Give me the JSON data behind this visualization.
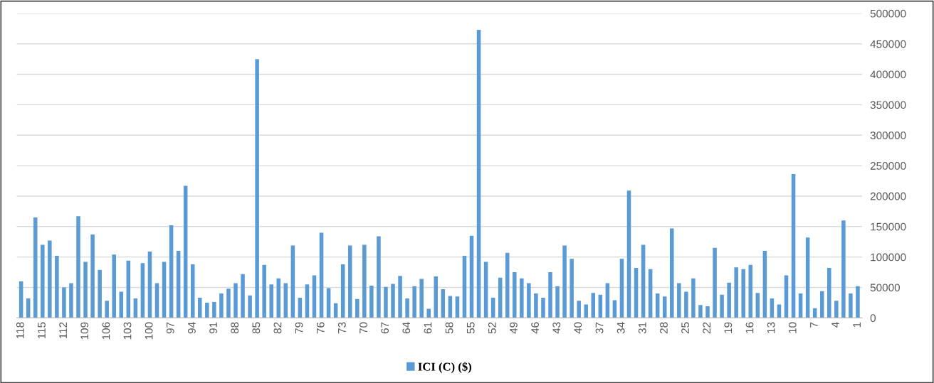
{
  "chart_data": {
    "type": "bar",
    "categories": [
      "118",
      null,
      null,
      "115",
      null,
      null,
      "112",
      null,
      null,
      "109",
      null,
      null,
      "106",
      null,
      null,
      "103",
      null,
      null,
      "100",
      null,
      null,
      "97",
      null,
      null,
      "94",
      null,
      null,
      "91",
      null,
      null,
      "88",
      null,
      null,
      "85",
      null,
      null,
      "82",
      null,
      null,
      "79",
      null,
      null,
      "76",
      null,
      null,
      "73",
      null,
      null,
      "70",
      null,
      null,
      "67",
      null,
      null,
      "64",
      null,
      null,
      "61",
      null,
      null,
      "58",
      null,
      null,
      "55",
      null,
      null,
      "52",
      null,
      null,
      "49",
      null,
      null,
      "46",
      null,
      null,
      "43",
      null,
      null,
      "40",
      null,
      null,
      "37",
      null,
      null,
      "34",
      null,
      null,
      "31",
      null,
      null,
      "28",
      null,
      null,
      "25",
      null,
      null,
      "22",
      null,
      null,
      "19",
      null,
      null,
      "16",
      null,
      null,
      "13",
      null,
      null,
      "10",
      null,
      null,
      "7",
      null,
      null,
      "4",
      null,
      null,
      "1"
    ],
    "series": [
      {
        "name": "ICI (C) ($)",
        "color": "#5b9bd5",
        "values": [
          60000,
          32000,
          165000,
          120000,
          127000,
          102000,
          50000,
          57000,
          167000,
          92000,
          137000,
          79000,
          28000,
          104000,
          43000,
          94000,
          32000,
          90000,
          109000,
          57000,
          92000,
          152000,
          110000,
          217000,
          88000,
          33000,
          25000,
          26000,
          40000,
          48000,
          57000,
          72000,
          37000,
          425000,
          87000,
          55000,
          65000,
          57000,
          119000,
          33000,
          55000,
          70000,
          140000,
          49000,
          24000,
          88000,
          119000,
          31000,
          120000,
          53000,
          134000,
          51000,
          56000,
          69000,
          32000,
          52000,
          64000,
          15000,
          68000,
          47000,
          36000,
          35000,
          102000,
          135000,
          473000,
          92000,
          33000,
          66000,
          107000,
          75000,
          65000,
          57000,
          40000,
          33000,
          75000,
          52000,
          119000,
          97000,
          28000,
          22000,
          41000,
          38000,
          57000,
          29000,
          97000,
          209000,
          82000,
          120000,
          80000,
          40000,
          35000,
          147000,
          57000,
          43000,
          65000,
          21000,
          19000,
          115000,
          38000,
          58000,
          83000,
          80000,
          87000,
          41000,
          110000,
          32000,
          22000,
          70000,
          236000,
          40000,
          132000,
          16000,
          44000,
          82000,
          28000,
          160000,
          40000,
          52000
        ]
      }
    ],
    "ylim": [
      0,
      500000
    ],
    "yticks": [
      0,
      50000,
      100000,
      150000,
      200000,
      250000,
      300000,
      350000,
      400000,
      450000,
      500000
    ],
    "grid": "y",
    "legend": "bottom"
  }
}
